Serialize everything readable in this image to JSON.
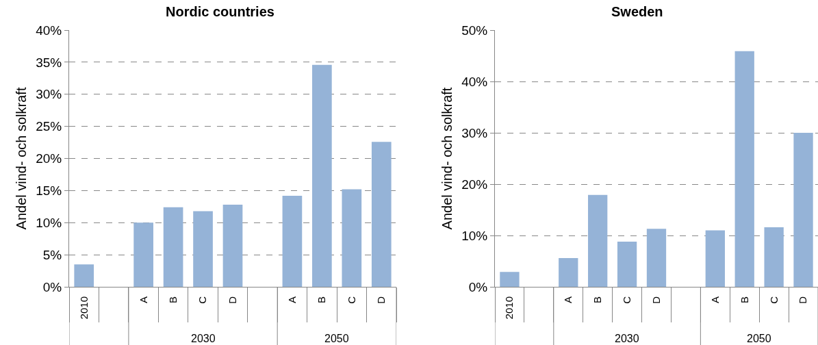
{
  "chart_data": [
    {
      "type": "bar",
      "title": "Nordic countries",
      "ylabel": "Andel vind- och solkraft",
      "categories": [
        "2010",
        null,
        "A",
        "B",
        "C",
        "D",
        null,
        "A",
        "B",
        "C",
        "D"
      ],
      "values": [
        3.5,
        null,
        10.0,
        12.4,
        11.8,
        12.8,
        null,
        14.2,
        34.6,
        15.2,
        22.6
      ],
      "color": "#95b3d7",
      "ylim": [
        0,
        40
      ],
      "yticks": [
        {
          "value": 0,
          "label": "0%"
        },
        {
          "value": 5,
          "label": "5%"
        },
        {
          "value": 10,
          "label": "10%"
        },
        {
          "value": 15,
          "label": "15%"
        },
        {
          "value": 20,
          "label": "20%"
        },
        {
          "value": 25,
          "label": "25%"
        },
        {
          "value": 30,
          "label": "30%"
        },
        {
          "value": 35,
          "label": "35%"
        },
        {
          "value": 40,
          "label": "40%"
        }
      ],
      "grid": "y",
      "annotations": [
        "2030",
        "2050"
      ]
    },
    {
      "type": "bar",
      "title": "Sweden",
      "ylabel": "Andel vind- och solkraft",
      "categories": [
        "2010",
        null,
        "A",
        "B",
        "C",
        "D",
        null,
        "A",
        "B",
        "C",
        "D"
      ],
      "values": [
        2.9,
        null,
        5.6,
        17.9,
        8.8,
        11.3,
        null,
        11.0,
        45.9,
        11.6,
        30.0
      ],
      "color": "#95b3d7",
      "ylim": [
        0,
        50
      ],
      "yticks": [
        {
          "value": 0,
          "label": "0%"
        },
        {
          "value": 10,
          "label": "10%"
        },
        {
          "value": 20,
          "label": "20%"
        },
        {
          "value": 30,
          "label": "30%"
        },
        {
          "value": 40,
          "label": "40%"
        },
        {
          "value": 50,
          "label": "50%"
        }
      ],
      "grid": "y",
      "annotations": [
        "2030",
        "2050"
      ]
    }
  ]
}
